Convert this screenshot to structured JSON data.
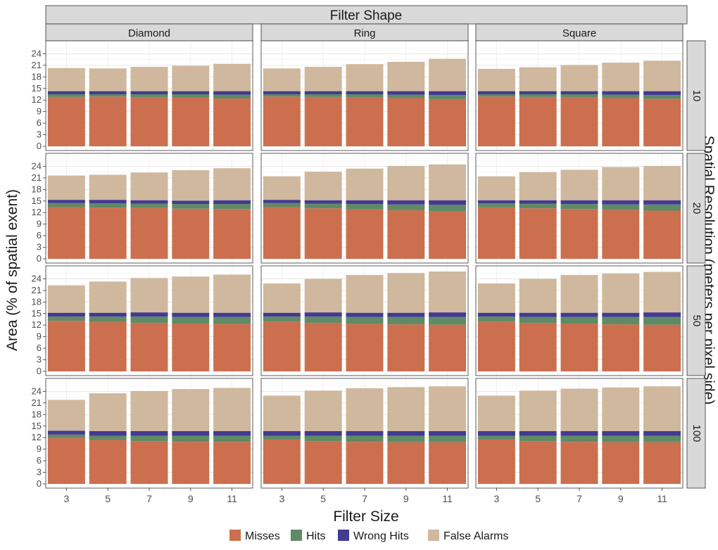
{
  "chart_data": {
    "type": "bar",
    "stacked": true,
    "facet_title": "Filter Shape",
    "right_title": "Spatial Resolution (meters per pixel side)",
    "xlabel": "Filter Size",
    "ylabel": "Area (% of spatial exent)",
    "ylim": [
      0,
      27
    ],
    "yticks": [
      0,
      3,
      6,
      9,
      12,
      15,
      18,
      21,
      24
    ],
    "categories": [
      "3",
      "5",
      "7",
      "9",
      "11"
    ],
    "columns": [
      "Diamond",
      "Ring",
      "Square"
    ],
    "rows": [
      "10",
      "20",
      "50",
      "100"
    ],
    "series_names": [
      "Misses",
      "Hits",
      "Wrong Hits",
      "False Alarms"
    ],
    "series_colors": [
      "#cc6f4f",
      "#5f8a66",
      "#433a91",
      "#cfb89d"
    ],
    "legend_position": "bottom",
    "grid": true,
    "panels": [
      {
        "column": "Diamond",
        "row": "10",
        "series": [
          {
            "name": "Misses",
            "values": [
              12.8,
              12.9,
              12.7,
              12.6,
              12.4
            ]
          },
          {
            "name": "Hits",
            "values": [
              0.7,
              0.6,
              0.8,
              0.9,
              1.0
            ]
          },
          {
            "name": "Wrong Hits",
            "values": [
              0.8,
              0.8,
              0.8,
              0.8,
              0.9
            ]
          },
          {
            "name": "False Alarms",
            "values": [
              6.0,
              5.9,
              6.3,
              6.6,
              7.1
            ]
          }
        ]
      },
      {
        "column": "Ring",
        "row": "10",
        "series": [
          {
            "name": "Misses",
            "values": [
              12.9,
              12.8,
              12.7,
              12.5,
              12.2
            ]
          },
          {
            "name": "Hits",
            "values": [
              0.6,
              0.7,
              0.8,
              0.9,
              1.1
            ]
          },
          {
            "name": "Wrong Hits",
            "values": [
              0.8,
              0.8,
              0.8,
              0.9,
              1.0
            ]
          },
          {
            "name": "False Alarms",
            "values": [
              5.9,
              6.3,
              7.0,
              7.6,
              8.4
            ]
          }
        ]
      },
      {
        "column": "Square",
        "row": "10",
        "series": [
          {
            "name": "Misses",
            "values": [
              12.9,
              12.8,
              12.7,
              12.5,
              12.3
            ]
          },
          {
            "name": "Hits",
            "values": [
              0.6,
              0.7,
              0.8,
              0.9,
              1.0
            ]
          },
          {
            "name": "Wrong Hits",
            "values": [
              0.8,
              0.8,
              0.8,
              0.9,
              1.0
            ]
          },
          {
            "name": "False Alarms",
            "values": [
              5.8,
              6.2,
              6.8,
              7.4,
              7.9
            ]
          }
        ]
      },
      {
        "column": "Diamond",
        "row": "20",
        "series": [
          {
            "name": "Misses",
            "values": [
              13.5,
              13.3,
              13.2,
              13.0,
              12.9
            ]
          },
          {
            "name": "Hits",
            "values": [
              1.0,
              1.1,
              1.1,
              1.2,
              1.3
            ]
          },
          {
            "name": "Wrong Hits",
            "values": [
              0.8,
              0.9,
              0.9,
              0.9,
              1.0
            ]
          },
          {
            "name": "False Alarms",
            "values": [
              6.3,
              6.5,
              7.2,
              7.9,
              8.3
            ]
          }
        ]
      },
      {
        "column": "Ring",
        "row": "20",
        "series": [
          {
            "name": "Misses",
            "values": [
              13.5,
              13.1,
              12.8,
              12.6,
              12.3
            ]
          },
          {
            "name": "Hits",
            "values": [
              1.0,
              1.2,
              1.4,
              1.5,
              1.7
            ]
          },
          {
            "name": "Wrong Hits",
            "values": [
              0.8,
              0.9,
              1.0,
              1.1,
              1.2
            ]
          },
          {
            "name": "False Alarms",
            "values": [
              6.1,
              7.4,
              8.2,
              8.9,
              9.3
            ]
          }
        ]
      },
      {
        "column": "Square",
        "row": "20",
        "series": [
          {
            "name": "Misses",
            "values": [
              13.4,
              13.1,
              12.9,
              12.7,
              12.5
            ]
          },
          {
            "name": "Hits",
            "values": [
              1.0,
              1.2,
              1.3,
              1.4,
              1.6
            ]
          },
          {
            "name": "Wrong Hits",
            "values": [
              0.8,
              0.9,
              1.0,
              1.1,
              1.1
            ]
          },
          {
            "name": "False Alarms",
            "values": [
              6.2,
              7.3,
              7.9,
              8.6,
              8.9
            ]
          }
        ]
      },
      {
        "column": "Diamond",
        "row": "50",
        "series": [
          {
            "name": "Misses",
            "values": [
              13.1,
              12.8,
              12.6,
              12.4,
              12.3
            ]
          },
          {
            "name": "Hits",
            "values": [
              1.1,
              1.4,
              1.6,
              1.7,
              1.8
            ]
          },
          {
            "name": "Wrong Hits",
            "values": [
              1.0,
              1.0,
              1.1,
              1.1,
              1.1
            ]
          },
          {
            "name": "False Alarms",
            "values": [
              7.1,
              8.1,
              8.9,
              9.4,
              9.9
            ]
          }
        ]
      },
      {
        "column": "Ring",
        "row": "50",
        "series": [
          {
            "name": "Misses",
            "values": [
              12.9,
              12.6,
              12.3,
              12.2,
              12.1
            ]
          },
          {
            "name": "Hits",
            "values": [
              1.3,
              1.6,
              1.8,
              1.9,
              2.0
            ]
          },
          {
            "name": "Wrong Hits",
            "values": [
              1.0,
              1.1,
              1.1,
              1.1,
              1.2
            ]
          },
          {
            "name": "False Alarms",
            "values": [
              7.6,
              8.7,
              9.8,
              10.3,
              10.6
            ]
          }
        ]
      },
      {
        "column": "Square",
        "row": "50",
        "series": [
          {
            "name": "Misses",
            "values": [
              12.9,
              12.6,
              12.4,
              12.2,
              12.1
            ]
          },
          {
            "name": "Hits",
            "values": [
              1.3,
              1.5,
              1.7,
              1.9,
              2.0
            ]
          },
          {
            "name": "Wrong Hits",
            "values": [
              1.0,
              1.1,
              1.1,
              1.1,
              1.2
            ]
          },
          {
            "name": "False Alarms",
            "values": [
              7.6,
              8.8,
              9.8,
              10.2,
              10.5
            ]
          }
        ]
      },
      {
        "column": "Diamond",
        "row": "100",
        "series": [
          {
            "name": "Misses",
            "values": [
              11.9,
              11.4,
              11.1,
              10.9,
              10.9
            ]
          },
          {
            "name": "Hits",
            "values": [
              0.9,
              1.1,
              1.4,
              1.6,
              1.6
            ]
          },
          {
            "name": "Wrong Hits",
            "values": [
              1.0,
              1.2,
              1.2,
              1.2,
              1.2
            ]
          },
          {
            "name": "False Alarms",
            "values": [
              8.0,
              9.8,
              10.4,
              10.9,
              11.2
            ]
          }
        ]
      },
      {
        "column": "Ring",
        "row": "100",
        "series": [
          {
            "name": "Misses",
            "values": [
              11.5,
              11.1,
              10.9,
              10.8,
              10.8
            ]
          },
          {
            "name": "Hits",
            "values": [
              1.0,
              1.4,
              1.6,
              1.7,
              1.7
            ]
          },
          {
            "name": "Wrong Hits",
            "values": [
              1.2,
              1.2,
              1.2,
              1.2,
              1.2
            ]
          },
          {
            "name": "False Alarms",
            "values": [
              9.2,
              10.5,
              11.1,
              11.4,
              11.6
            ]
          }
        ]
      },
      {
        "column": "Square",
        "row": "100",
        "series": [
          {
            "name": "Misses",
            "values": [
              11.5,
              11.1,
              10.9,
              10.8,
              10.8
            ]
          },
          {
            "name": "Hits",
            "values": [
              1.0,
              1.4,
              1.6,
              1.7,
              1.7
            ]
          },
          {
            "name": "Wrong Hits",
            "values": [
              1.2,
              1.2,
              1.2,
              1.2,
              1.2
            ]
          },
          {
            "name": "False Alarms",
            "values": [
              9.2,
              10.5,
              11.0,
              11.3,
              11.6
            ]
          }
        ]
      }
    ]
  }
}
